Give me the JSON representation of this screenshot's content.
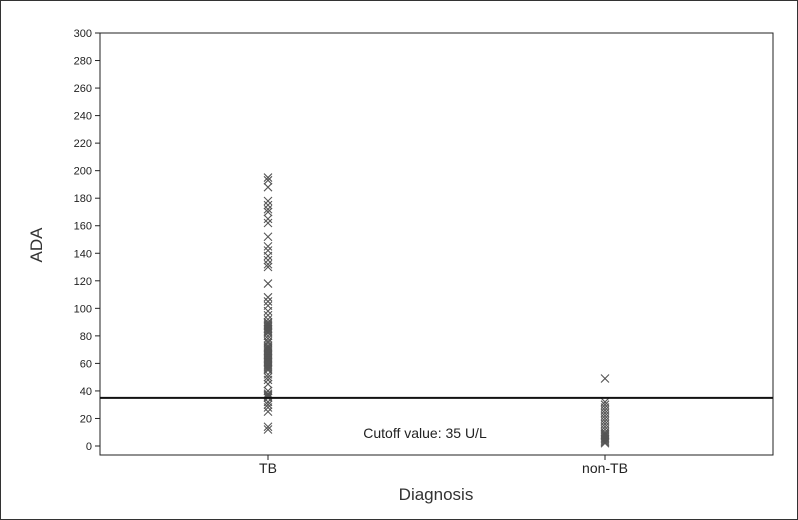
{
  "chart_data": {
    "type": "scatter",
    "xlabel": "Diagnosis",
    "ylabel": "ADA",
    "categories": [
      "TB",
      "non-TB"
    ],
    "ylim": [
      0,
      300
    ],
    "yticks": [
      0,
      20,
      40,
      60,
      80,
      100,
      120,
      140,
      160,
      180,
      200,
      220,
      240,
      260,
      280,
      300
    ],
    "grid": false,
    "marker": "x",
    "marker_color": "#555555",
    "series": [
      {
        "category": "TB",
        "values": [
          195,
          193,
          188,
          178,
          175,
          172,
          170,
          165,
          162,
          152,
          145,
          142,
          138,
          135,
          132,
          130,
          118,
          108,
          105,
          102,
          98,
          95,
          92,
          90,
          89,
          88,
          87,
          86,
          85,
          84,
          83,
          82,
          80,
          78,
          76,
          75,
          73,
          72,
          71,
          70,
          69,
          68,
          67,
          66,
          65,
          64,
          63,
          62,
          61,
          60,
          59,
          58,
          57,
          56,
          55,
          52,
          50,
          48,
          45,
          40,
          38,
          37,
          36,
          35,
          32,
          30,
          28,
          25,
          14,
          12
        ]
      },
      {
        "category": "non-TB",
        "values": [
          49,
          32,
          30,
          28,
          26,
          24,
          22,
          20,
          18,
          16,
          14,
          12,
          10,
          9,
          8,
          7,
          6,
          5,
          4,
          3,
          2
        ]
      }
    ],
    "reference_line": {
      "value": 35,
      "label": "Cutoff value: 35 U/L"
    }
  }
}
